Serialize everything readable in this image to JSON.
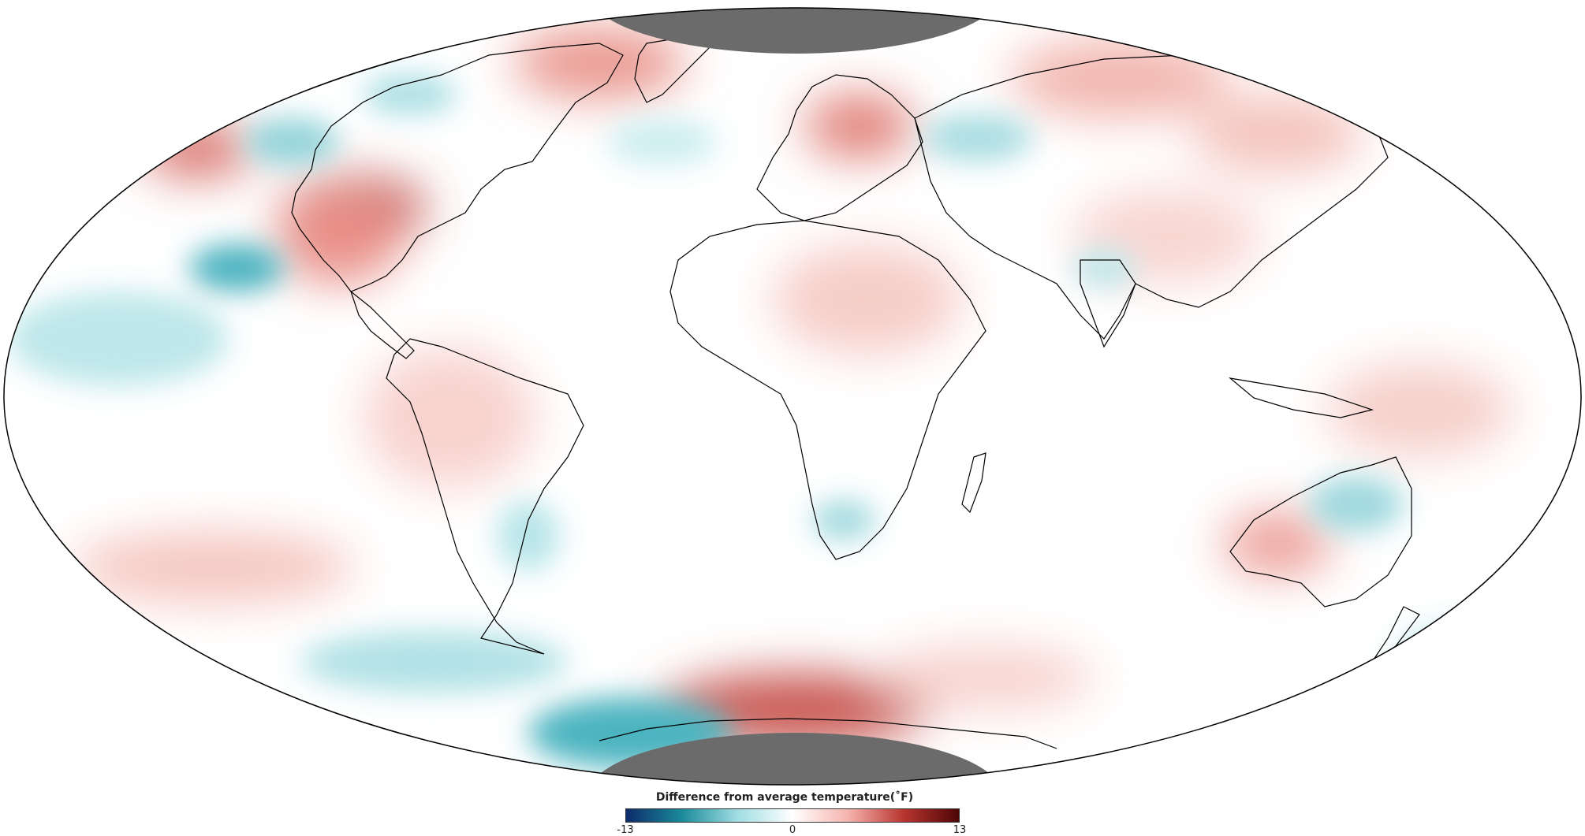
{
  "legend": {
    "title": "Difference from average temperature(˚F)",
    "min_label": "-13",
    "mid_label": "0",
    "max_label": "13",
    "colors": [
      "#0d2b6b",
      "#1a8a9a",
      "#9fdde2",
      "#ffffff",
      "#f6b3ad",
      "#b93530",
      "#4e0606"
    ]
  },
  "map": {
    "projection": "Mollweide",
    "polar_mask_color": "#6b6b6b",
    "coastline_color": "#000000"
  }
}
